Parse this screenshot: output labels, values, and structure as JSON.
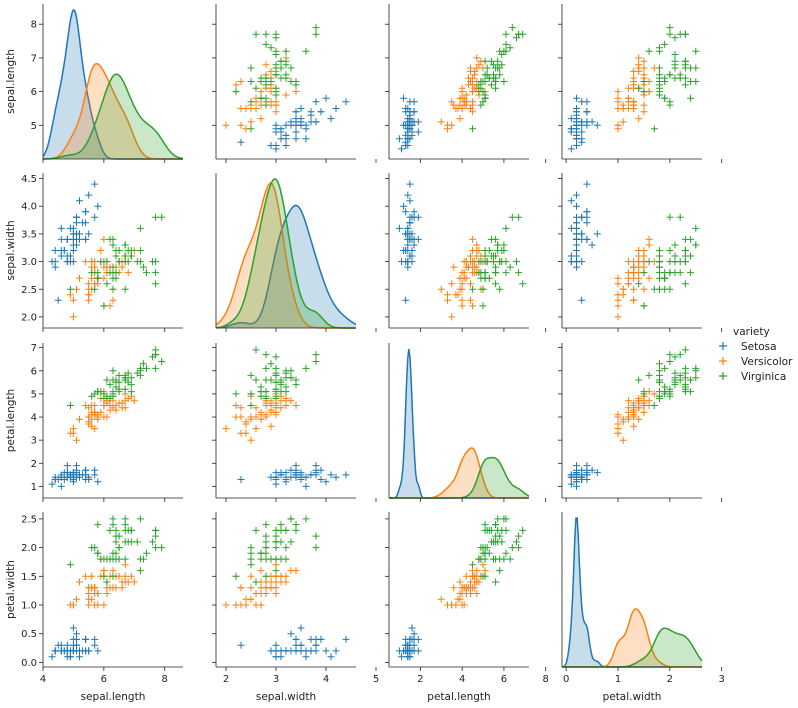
{
  "chart_data": {
    "type": "scatter",
    "kind": "pairplot",
    "variables": [
      "sepal.length",
      "sepal.width",
      "petal.length",
      "petal.width"
    ],
    "axis_ranges": {
      "sepal.length": [
        4.0,
        8.6
      ],
      "sepal.width": [
        1.8,
        4.6
      ],
      "petal.length": [
        0.5,
        7.2
      ],
      "petal.width": [
        -0.08,
        2.62
      ]
    },
    "ticks": {
      "sepal.length": [
        4,
        5,
        6,
        7,
        8
      ],
      "sepal.width": [
        2,
        3,
        4,
        5
      ],
      "petal.length": [
        2,
        4,
        6,
        8
      ],
      "petal.width": [
        0,
        1,
        2,
        3
      ]
    },
    "left_ticks": {
      "sepal.length": [
        "5",
        "6",
        "7",
        "8"
      ],
      "sepal.width": [
        "2.0",
        "2.5",
        "3.0",
        "3.5",
        "4.0",
        "4.5"
      ],
      "petal.length": [
        "1",
        "2",
        "3",
        "4",
        "5",
        "6",
        "7"
      ],
      "petal.width": [
        "0.0",
        "0.5",
        "1.0",
        "1.5",
        "2.0",
        "2.5"
      ]
    },
    "bottom_ticks": {
      "sepal.length": [
        "4",
        "6",
        "8"
      ],
      "sepal.width": [
        "2",
        "3",
        "4",
        "5"
      ],
      "petal.length": [
        "2",
        "4",
        "6",
        "8"
      ],
      "petal.width": [
        "0",
        "1",
        "2",
        "3"
      ]
    },
    "diagonal": "kde",
    "marker": "+",
    "grid": false,
    "legend_position": "right",
    "legend": {
      "title": "variety",
      "entries": [
        "Setosa",
        "Versicolor",
        "Virginica"
      ]
    },
    "series": [
      {
        "name": "Setosa",
        "color": "#1f77b4",
        "sepal.length": [
          5.1,
          4.9,
          4.7,
          4.6,
          5.0,
          5.4,
          4.6,
          5.0,
          4.4,
          4.9,
          5.4,
          4.8,
          4.8,
          4.3,
          5.8,
          5.7,
          5.4,
          5.1,
          5.7,
          5.1,
          5.4,
          5.1,
          4.6,
          5.1,
          4.8,
          5.0,
          5.0,
          5.2,
          5.2,
          4.7,
          4.8,
          5.4,
          5.2,
          5.5,
          4.9,
          5.0,
          5.5,
          4.9,
          4.4,
          5.1,
          5.0,
          4.5,
          4.4,
          5.0,
          5.1,
          4.8,
          5.1,
          4.6,
          5.3,
          5.0
        ],
        "sepal.width": [
          3.5,
          3.0,
          3.2,
          3.1,
          3.6,
          3.9,
          3.4,
          3.4,
          2.9,
          3.1,
          3.7,
          3.4,
          3.0,
          3.0,
          4.0,
          4.4,
          3.9,
          3.5,
          3.8,
          3.8,
          3.4,
          3.7,
          3.6,
          3.3,
          3.4,
          3.0,
          3.4,
          3.5,
          3.4,
          3.2,
          3.1,
          3.4,
          4.1,
          4.2,
          3.1,
          3.2,
          3.5,
          3.6,
          3.0,
          3.4,
          3.5,
          2.3,
          3.2,
          3.5,
          3.8,
          3.0,
          3.8,
          3.2,
          3.7,
          3.3
        ],
        "petal.length": [
          1.4,
          1.4,
          1.3,
          1.5,
          1.4,
          1.7,
          1.4,
          1.5,
          1.4,
          1.5,
          1.5,
          1.6,
          1.4,
          1.1,
          1.2,
          1.5,
          1.3,
          1.4,
          1.7,
          1.5,
          1.7,
          1.5,
          1.0,
          1.7,
          1.9,
          1.6,
          1.6,
          1.5,
          1.4,
          1.6,
          1.6,
          1.5,
          1.5,
          1.4,
          1.5,
          1.2,
          1.3,
          1.4,
          1.3,
          1.5,
          1.3,
          1.3,
          1.3,
          1.6,
          1.9,
          1.4,
          1.6,
          1.4,
          1.5,
          1.4
        ],
        "petal.width": [
          0.2,
          0.2,
          0.2,
          0.2,
          0.2,
          0.4,
          0.3,
          0.2,
          0.2,
          0.1,
          0.2,
          0.2,
          0.1,
          0.1,
          0.2,
          0.4,
          0.4,
          0.3,
          0.3,
          0.3,
          0.2,
          0.4,
          0.2,
          0.5,
          0.2,
          0.2,
          0.4,
          0.2,
          0.2,
          0.2,
          0.2,
          0.4,
          0.1,
          0.2,
          0.2,
          0.2,
          0.2,
          0.1,
          0.2,
          0.2,
          0.3,
          0.3,
          0.2,
          0.6,
          0.4,
          0.3,
          0.2,
          0.2,
          0.2,
          0.2
        ]
      },
      {
        "name": "Versicolor",
        "color": "#ff7f0e",
        "sepal.length": [
          7.0,
          6.4,
          6.9,
          5.5,
          6.5,
          5.7,
          6.3,
          4.9,
          6.6,
          5.2,
          5.0,
          5.9,
          6.0,
          6.1,
          5.6,
          6.7,
          5.6,
          5.8,
          6.2,
          5.6,
          5.9,
          6.1,
          6.3,
          6.1,
          6.4,
          6.6,
          6.8,
          6.7,
          6.0,
          5.7,
          5.5,
          5.5,
          5.8,
          6.0,
          5.4,
          6.0,
          6.7,
          6.3,
          5.6,
          5.5,
          5.5,
          6.1,
          5.8,
          5.0,
          5.6,
          5.7,
          5.7,
          6.2,
          5.1,
          5.7
        ],
        "sepal.width": [
          3.2,
          3.2,
          3.1,
          2.3,
          2.8,
          2.8,
          3.3,
          2.4,
          2.9,
          2.7,
          2.0,
          3.0,
          2.2,
          2.9,
          2.9,
          3.1,
          3.0,
          2.7,
          2.2,
          2.5,
          3.2,
          2.8,
          2.5,
          2.8,
          2.9,
          3.0,
          2.8,
          3.0,
          2.9,
          2.6,
          2.4,
          2.4,
          2.7,
          2.7,
          3.0,
          3.4,
          3.1,
          2.3,
          3.0,
          2.5,
          2.6,
          3.0,
          2.6,
          2.3,
          2.7,
          3.0,
          2.9,
          2.9,
          2.5,
          2.8
        ],
        "petal.length": [
          4.7,
          4.5,
          4.9,
          4.0,
          4.6,
          4.5,
          4.7,
          3.3,
          4.6,
          3.9,
          3.5,
          4.2,
          4.0,
          4.7,
          3.6,
          4.4,
          4.5,
          4.1,
          4.5,
          3.9,
          4.8,
          4.0,
          4.9,
          4.7,
          4.3,
          4.4,
          4.8,
          5.0,
          4.5,
          3.5,
          3.8,
          3.7,
          3.9,
          5.1,
          4.5,
          4.5,
          4.7,
          4.4,
          4.1,
          4.0,
          4.4,
          4.6,
          4.0,
          3.3,
          4.2,
          4.2,
          4.2,
          4.3,
          3.0,
          4.1
        ],
        "petal.width": [
          1.4,
          1.5,
          1.5,
          1.3,
          1.5,
          1.3,
          1.6,
          1.0,
          1.3,
          1.4,
          1.0,
          1.5,
          1.0,
          1.4,
          1.3,
          1.4,
          1.5,
          1.0,
          1.5,
          1.1,
          1.8,
          1.3,
          1.5,
          1.2,
          1.3,
          1.4,
          1.4,
          1.7,
          1.5,
          1.0,
          1.1,
          1.0,
          1.2,
          1.6,
          1.5,
          1.6,
          1.5,
          1.3,
          1.3,
          1.3,
          1.2,
          1.4,
          1.2,
          1.0,
          1.3,
          1.2,
          1.3,
          1.3,
          1.1,
          1.3
        ]
      },
      {
        "name": "Virginica",
        "color": "#2ca02c",
        "sepal.length": [
          6.3,
          5.8,
          7.1,
          6.3,
          6.5,
          7.6,
          4.9,
          7.3,
          6.7,
          7.2,
          6.5,
          6.4,
          6.8,
          5.7,
          5.8,
          6.4,
          6.5,
          7.7,
          7.7,
          6.0,
          6.9,
          5.6,
          7.7,
          6.3,
          6.7,
          7.2,
          6.2,
          6.1,
          6.4,
          7.2,
          7.4,
          7.9,
          6.4,
          6.3,
          6.1,
          7.7,
          6.3,
          6.4,
          6.0,
          6.9,
          6.7,
          6.9,
          5.8,
          6.8,
          6.7,
          6.7,
          6.3,
          6.5,
          6.2,
          5.9
        ],
        "sepal.width": [
          3.3,
          2.7,
          3.0,
          2.9,
          3.0,
          3.0,
          2.5,
          2.9,
          2.5,
          3.6,
          3.2,
          2.7,
          3.0,
          2.5,
          2.8,
          3.2,
          3.0,
          3.8,
          2.6,
          2.2,
          3.2,
          2.8,
          2.8,
          2.7,
          3.3,
          3.2,
          2.8,
          3.0,
          2.8,
          3.0,
          2.8,
          3.8,
          2.8,
          2.8,
          2.6,
          3.0,
          3.4,
          3.1,
          3.0,
          3.1,
          3.1,
          3.1,
          2.7,
          3.2,
          3.3,
          3.0,
          2.5,
          3.0,
          3.4,
          3.0
        ],
        "petal.length": [
          6.0,
          5.1,
          5.9,
          5.6,
          5.8,
          6.6,
          4.5,
          6.3,
          5.8,
          6.1,
          5.1,
          5.3,
          5.5,
          5.0,
          5.1,
          5.3,
          5.5,
          6.7,
          6.9,
          5.0,
          5.7,
          4.9,
          6.7,
          4.9,
          5.7,
          6.0,
          4.8,
          4.9,
          5.6,
          5.8,
          6.1,
          6.4,
          5.6,
          5.1,
          5.6,
          6.1,
          5.6,
          5.5,
          4.8,
          5.4,
          5.6,
          5.1,
          5.1,
          5.9,
          5.7,
          5.2,
          5.0,
          5.2,
          5.4,
          5.1
        ],
        "petal.width": [
          2.5,
          1.9,
          2.1,
          1.8,
          2.2,
          2.1,
          1.7,
          1.8,
          1.8,
          2.5,
          2.0,
          1.9,
          2.1,
          2.0,
          2.4,
          2.3,
          1.8,
          2.2,
          2.3,
          1.5,
          2.3,
          2.0,
          2.0,
          1.8,
          2.1,
          1.8,
          1.8,
          1.8,
          2.1,
          1.6,
          1.9,
          2.0,
          2.2,
          1.5,
          1.4,
          2.3,
          2.4,
          1.8,
          1.8,
          2.1,
          2.4,
          2.3,
          1.9,
          2.3,
          2.5,
          2.3,
          1.9,
          2.0,
          2.3,
          1.8
        ]
      }
    ]
  }
}
